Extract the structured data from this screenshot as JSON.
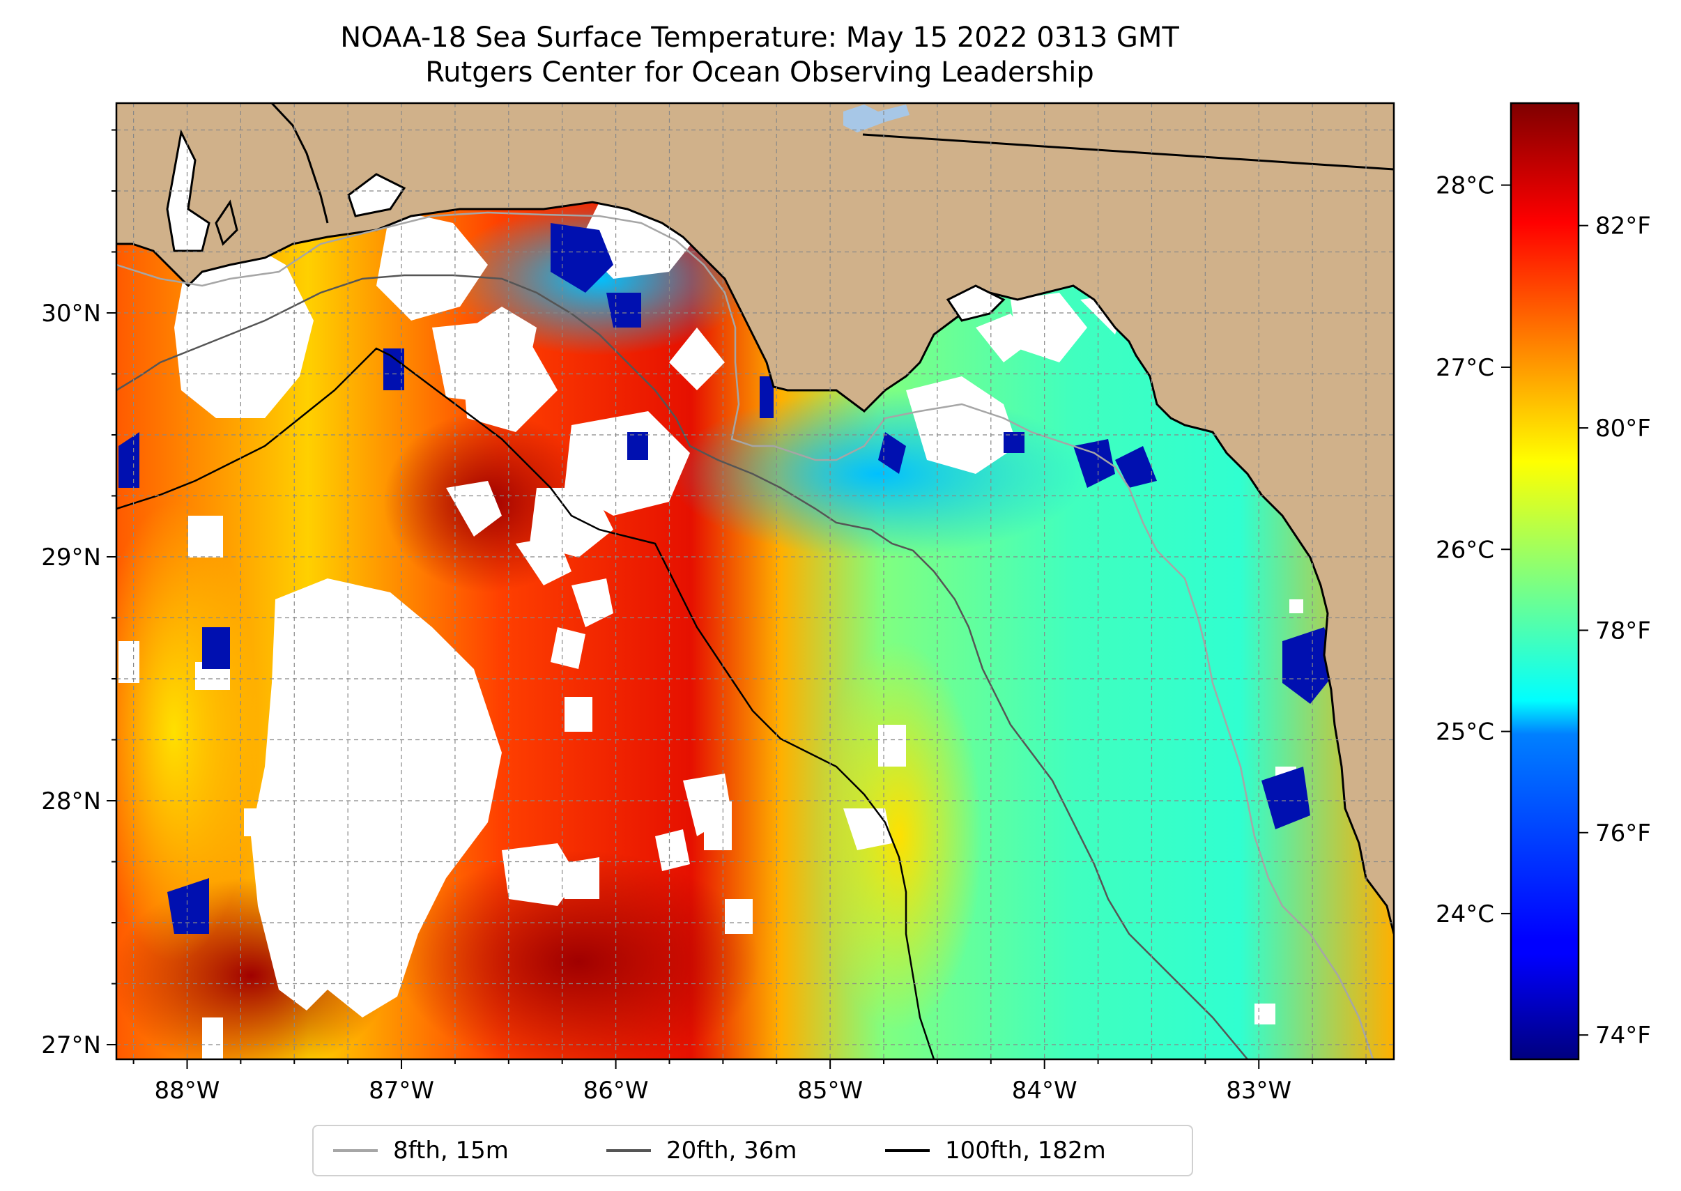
{
  "title": {
    "line1": "NOAA-18 Sea Surface Temperature: May 15 2022 0313 GMT",
    "line2": "Rutgers Center for Ocean Observing Leadership"
  },
  "map": {
    "lon_range": [
      -88.33,
      -82.37
    ],
    "lat_range": [
      26.94,
      30.86
    ],
    "land_color": "#d0b18a",
    "cloud_color": "#ffffff",
    "lon_ticks": [
      {
        "value": -88,
        "label": "88°W"
      },
      {
        "value": -87,
        "label": "87°W"
      },
      {
        "value": -86,
        "label": "86°W"
      },
      {
        "value": -85,
        "label": "85°W"
      },
      {
        "value": -84,
        "label": "84°W"
      },
      {
        "value": -83,
        "label": "83°W"
      }
    ],
    "lat_ticks": [
      {
        "value": 27,
        "label": "27°N"
      },
      {
        "value": 28,
        "label": "28°N"
      },
      {
        "value": 29,
        "label": "29°N"
      },
      {
        "value": 30,
        "label": "30°N"
      }
    ],
    "grid": true
  },
  "colorbar": {
    "colormap": "jet",
    "range_c": [
      23.2,
      28.45
    ],
    "celsius_ticks": [
      {
        "value": 24,
        "label": "24°C"
      },
      {
        "value": 25,
        "label": "25°C"
      },
      {
        "value": 26,
        "label": "26°C"
      },
      {
        "value": 27,
        "label": "27°C"
      },
      {
        "value": 28,
        "label": "28°C"
      }
    ],
    "fahrenheit_ticks": [
      {
        "value": 74,
        "label": "74°F"
      },
      {
        "value": 76,
        "label": "76°F"
      },
      {
        "value": 78,
        "label": "78°F"
      },
      {
        "value": 80,
        "label": "80°F"
      },
      {
        "value": 82,
        "label": "82°F"
      }
    ]
  },
  "legend": {
    "placement": "bottom-center",
    "items": [
      {
        "label": "8fth, 15m",
        "color": "#a6a6a6"
      },
      {
        "label": "20fth, 36m",
        "color": "#555555"
      },
      {
        "label": "100fth, 182m",
        "color": "#000000"
      }
    ]
  }
}
